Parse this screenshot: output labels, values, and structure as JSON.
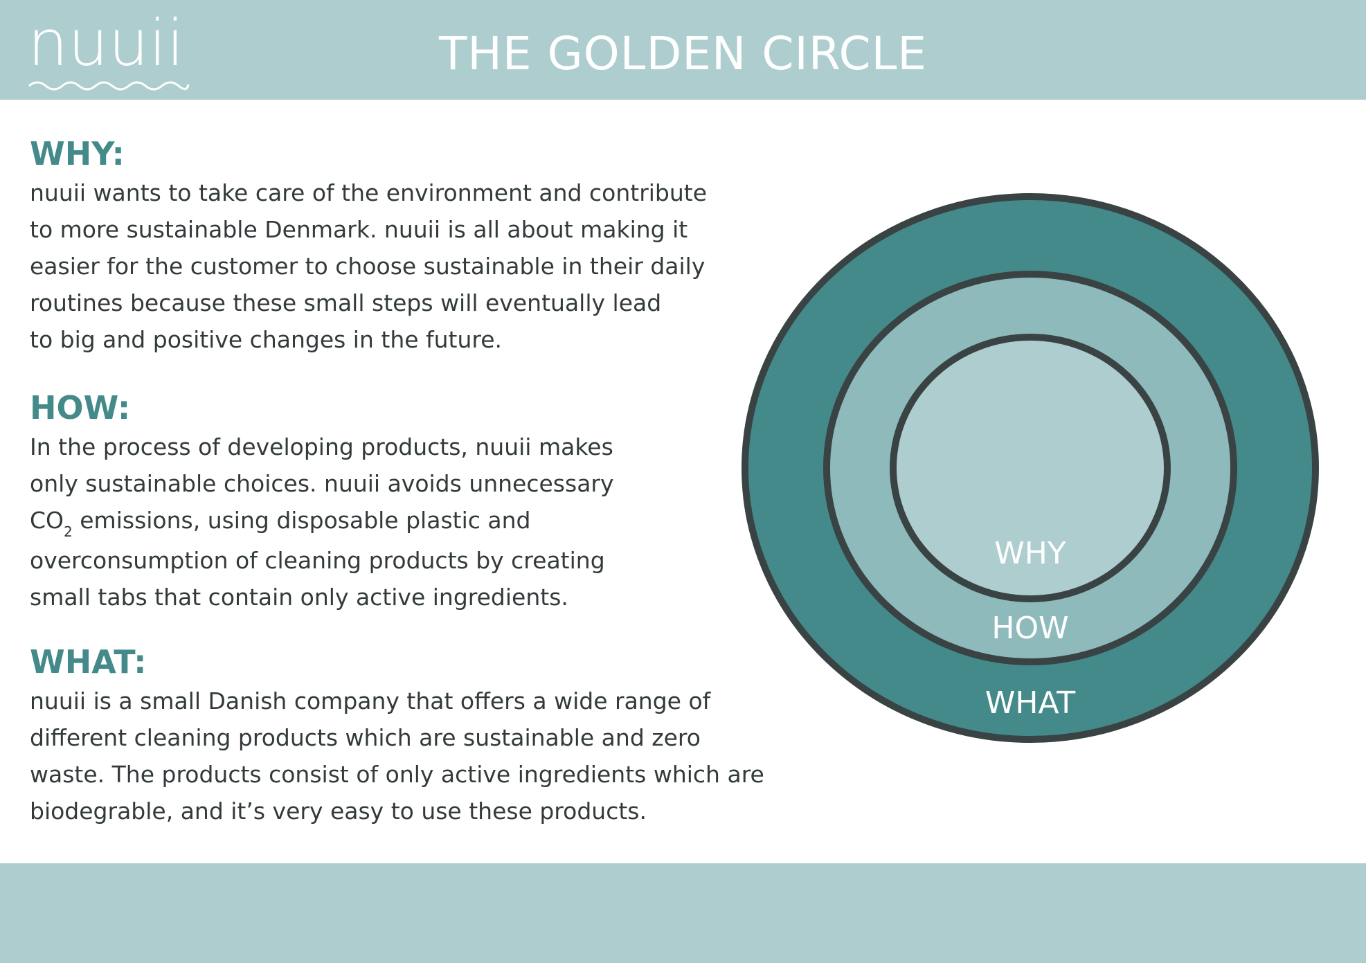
{
  "header": {
    "logo_text": "nuuii",
    "title": "THE GOLDEN CIRCLE"
  },
  "colors": {
    "band": "#aecdcf",
    "accent_teal": "#448a8a",
    "outer_ring": "#448a8a",
    "middle_ring": "#8fbabb",
    "inner_circle": "#aecdcf",
    "outline": "#3a4344",
    "body_text": "#333a3b"
  },
  "sections": {
    "why": {
      "heading": "WHY:",
      "lines": [
        "nuuii wants to take care of the environment and contribute",
        "to more sustainable Denmark. nuuii is all about making it",
        "easier for the customer to choose sustainable in their daily",
        "routines because these small steps will eventually lead",
        "to big and positive changes in the future."
      ]
    },
    "how": {
      "heading": "HOW:",
      "line1": "In the process of developing products, nuuii makes",
      "line2": "only sustainable choices. nuuii avoids unnecessary",
      "line3_prefix": "CO",
      "line3_subscript": "2",
      "line3_rest": " emissions, using disposable plastic and",
      "line4": "overconsumption of cleaning products by creating",
      "line5": "small tabs that contain only active ingredients."
    },
    "what": {
      "heading": "WHAT:",
      "lines": [
        "nuuii is a small Danish company that offers a wide range of",
        "different cleaning products which are sustainable and zero",
        "waste. The products consist of only active ingredients which are",
        "biodegrable, and it’s very easy to use these products."
      ]
    }
  },
  "diagram": {
    "inner_label": "WHY",
    "middle_label": "HOW",
    "outer_label": "WHAT"
  }
}
